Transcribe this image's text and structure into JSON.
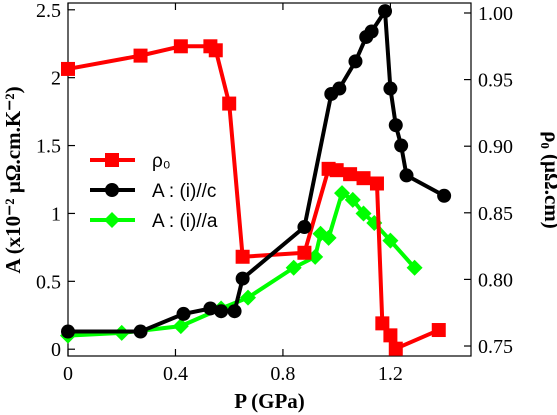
{
  "chart_data": {
    "type": "line",
    "xlabel": "P (GPa)",
    "ylabel_left": "A (x10⁻² μΩ.cm.K⁻²)",
    "ylabel_right": "ρ₀ (μΩ.cm)",
    "xlim": [
      0,
      1.5
    ],
    "ylim_left": [
      -0.05,
      2.55
    ],
    "ylim_right": [
      0.7425,
      1.0075
    ],
    "xticks": [
      "0",
      "0.4",
      "0.8",
      "1.2"
    ],
    "xtick_values": [
      0,
      0.4,
      0.8,
      1.2
    ],
    "yticks_left": [
      "0",
      "0.5",
      "1",
      "1.5",
      "2",
      "2.5"
    ],
    "ytick_values_left": [
      0,
      0.5,
      1,
      1.5,
      2,
      2.5
    ],
    "yticks_right": [
      "0.75",
      "0.80",
      "0.85",
      "0.90",
      "0.95",
      "1.00"
    ],
    "ytick_values_right": [
      0.75,
      0.8,
      0.85,
      0.9,
      0.95,
      1.0
    ],
    "grid": false,
    "legend_position": "center-left",
    "series": [
      {
        "name": "ρ₀",
        "axis": "right",
        "marker": "square",
        "color": "#ff0000",
        "x": [
          0,
          0.27,
          0.42,
          0.53,
          0.55,
          0.6,
          0.65,
          0.88,
          0.97,
          1.0,
          1.05,
          1.1,
          1.15,
          1.17,
          1.2,
          1.22,
          1.38
        ],
        "y": [
          0.958,
          0.968,
          0.975,
          0.975,
          0.972,
          0.932,
          0.817,
          0.82,
          0.883,
          0.882,
          0.879,
          0.876,
          0.872,
          0.767,
          0.758,
          0.748,
          0.762
        ]
      },
      {
        "name": "A : (i)//c",
        "axis": "left",
        "marker": "circle",
        "color": "#000000",
        "x": [
          0,
          0.27,
          0.43,
          0.53,
          0.57,
          0.62,
          0.65,
          0.88,
          0.98,
          1.01,
          1.07,
          1.11,
          1.13,
          1.18,
          1.2,
          1.22,
          1.24,
          1.26,
          1.4
        ],
        "y": [
          0.13,
          0.13,
          0.26,
          0.3,
          0.28,
          0.28,
          0.52,
          0.9,
          1.88,
          1.92,
          2.12,
          2.3,
          2.34,
          2.49,
          1.92,
          1.65,
          1.5,
          1.28,
          1.13
        ]
      },
      {
        "name": "A : (i)//a",
        "axis": "left",
        "marker": "diamond",
        "color": "#00ff00",
        "x": [
          0,
          0.2,
          0.42,
          0.57,
          0.67,
          0.84,
          0.92,
          0.94,
          0.97,
          1.02,
          1.06,
          1.1,
          1.14,
          1.2,
          1.29
        ],
        "y": [
          0.1,
          0.12,
          0.17,
          0.3,
          0.38,
          0.6,
          0.68,
          0.85,
          0.82,
          1.15,
          1.1,
          1.0,
          0.93,
          0.8,
          0.6
        ]
      }
    ]
  }
}
